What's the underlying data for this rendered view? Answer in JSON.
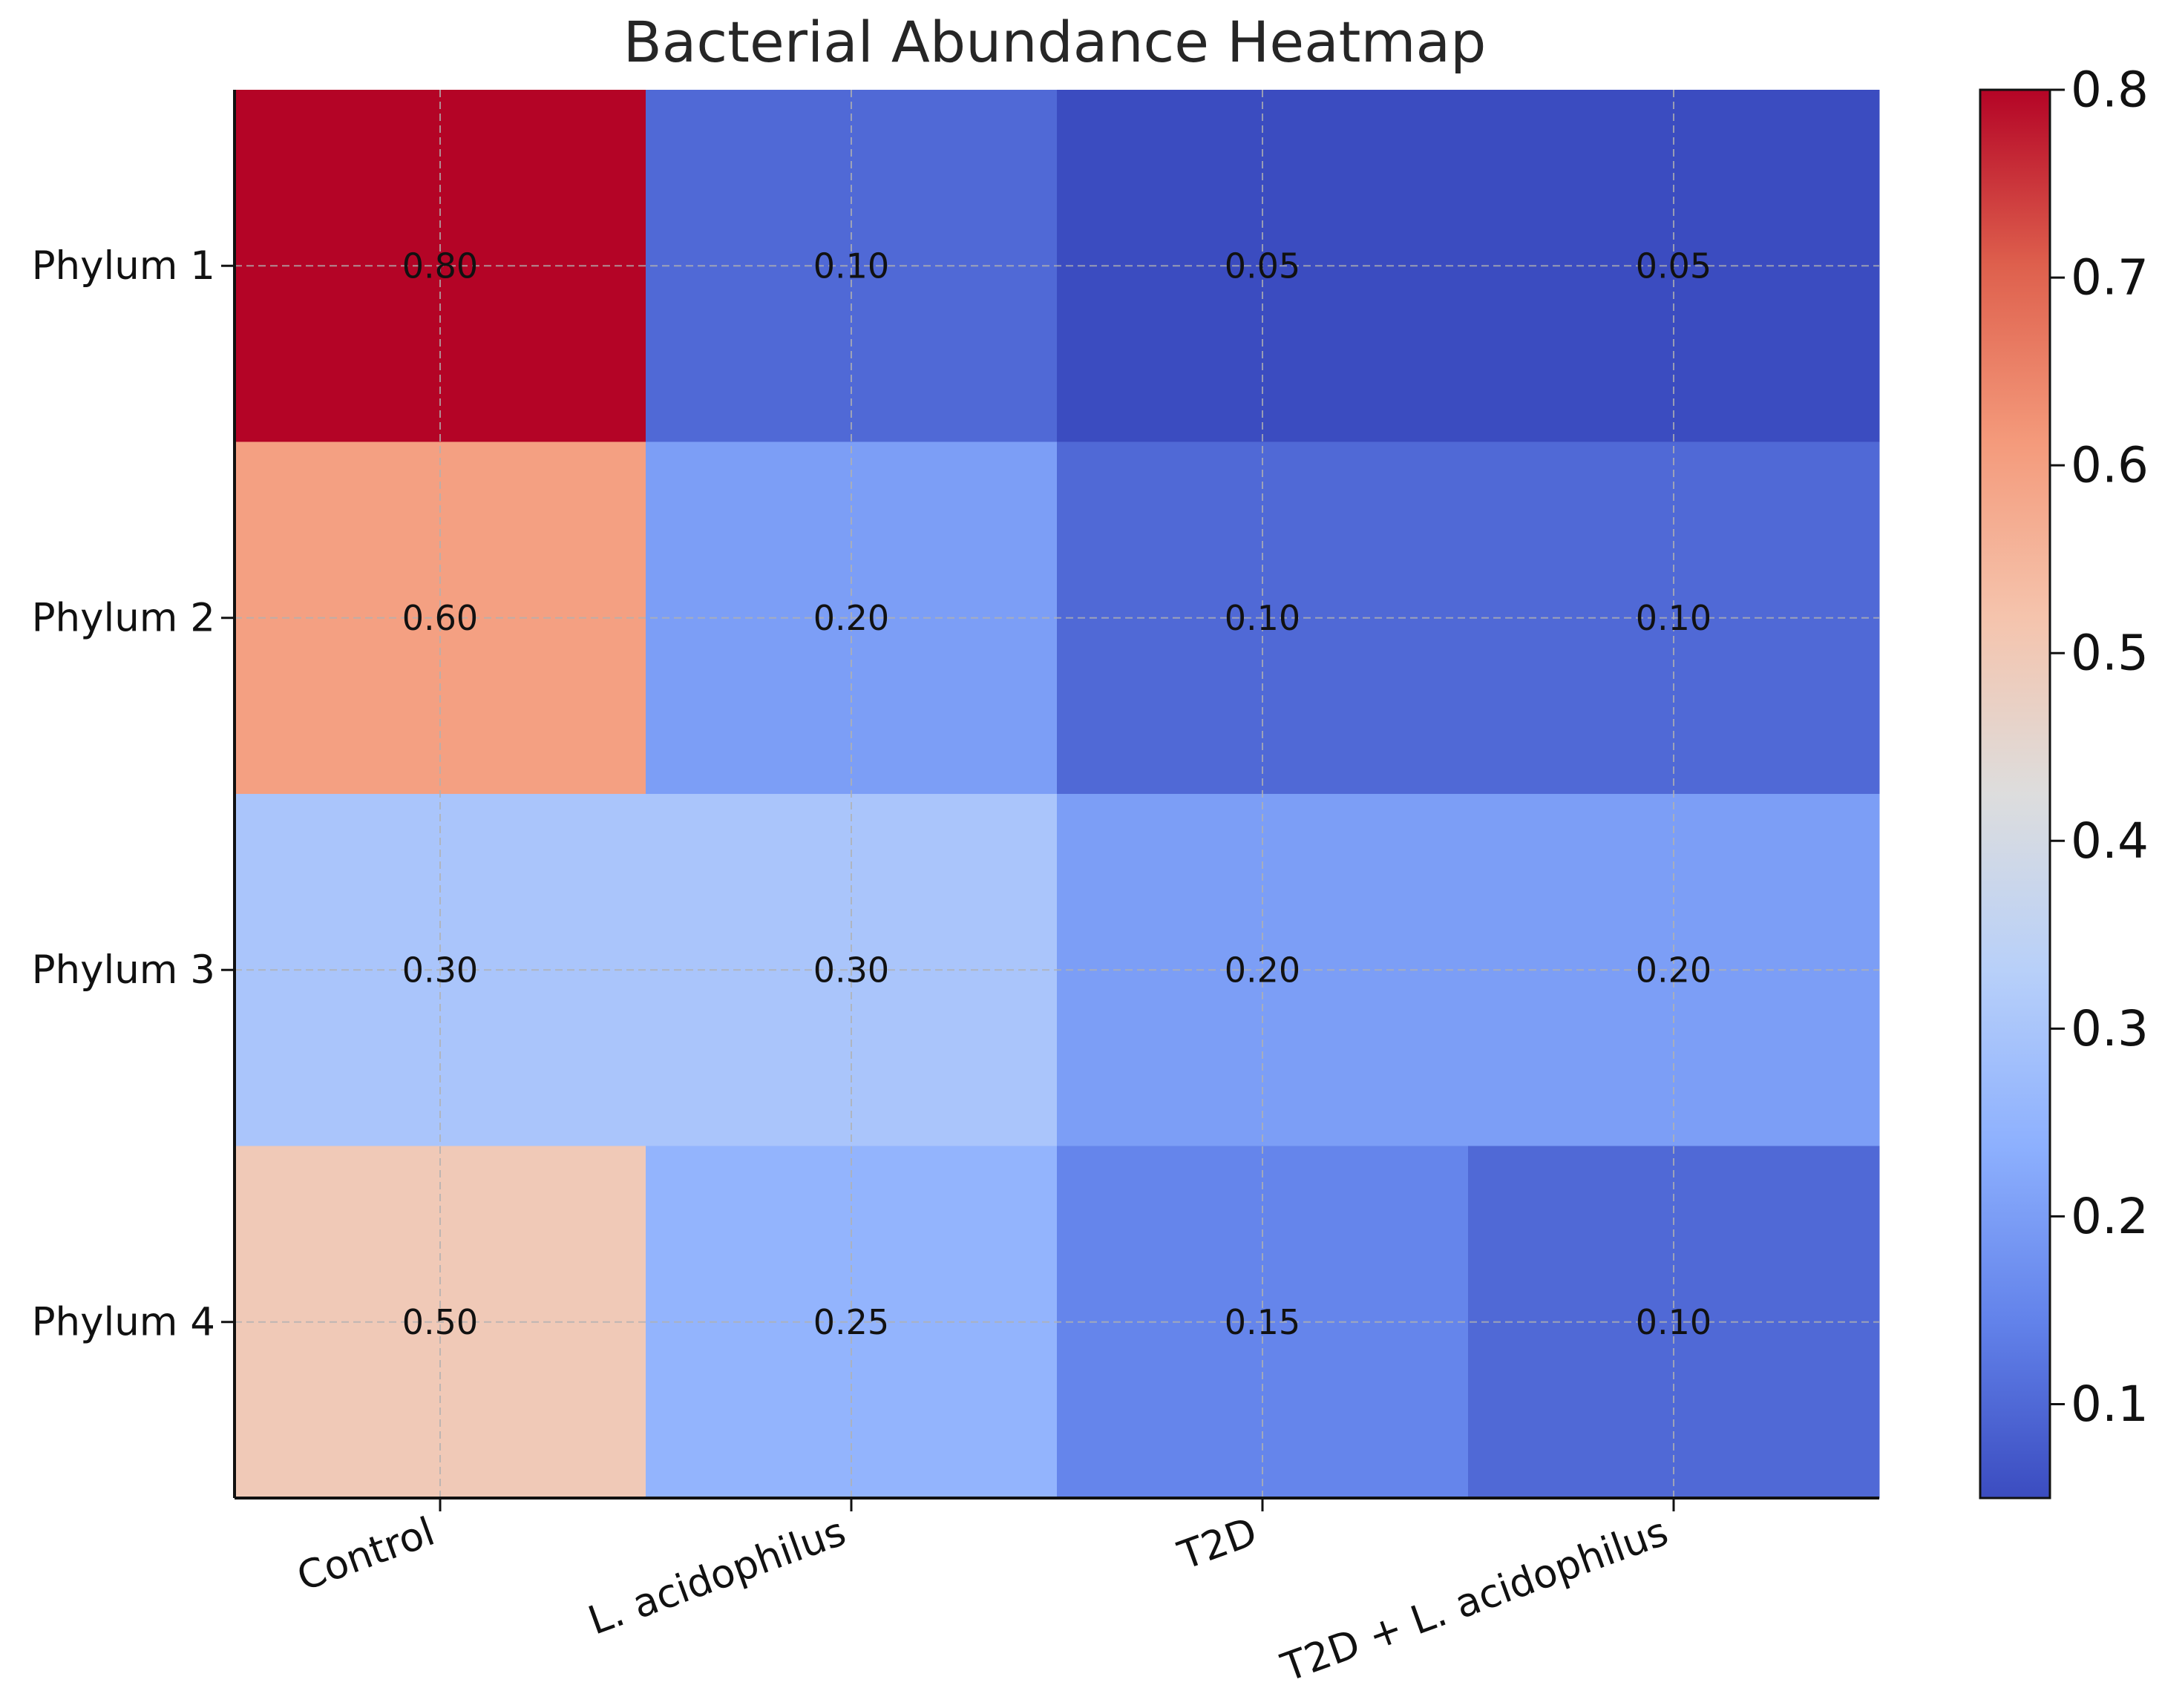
{
  "chart_data": {
    "type": "heatmap",
    "title": "Bacterial Abundance Heatmap",
    "xlabel": "",
    "ylabel": "",
    "x_categories": [
      "Control",
      "L. acidophilus",
      "T2D",
      "T2D + L. acidophilus"
    ],
    "y_categories": [
      "Phylum 1",
      "Phylum 2",
      "Phylum 3",
      "Phylum 4"
    ],
    "values": [
      [
        0.8,
        0.1,
        0.05,
        0.05
      ],
      [
        0.6,
        0.2,
        0.1,
        0.1
      ],
      [
        0.3,
        0.3,
        0.2,
        0.2
      ],
      [
        0.5,
        0.25,
        0.15,
        0.1
      ]
    ],
    "value_labels": [
      [
        "0.80",
        "0.10",
        "0.05",
        "0.05"
      ],
      [
        "0.60",
        "0.20",
        "0.10",
        "0.10"
      ],
      [
        "0.30",
        "0.30",
        "0.20",
        "0.20"
      ],
      [
        "0.50",
        "0.25",
        "0.15",
        "0.10"
      ]
    ],
    "colormap": "coolwarm",
    "colorbar": {
      "range": [
        0.05,
        0.8
      ],
      "ticks": [
        0.1,
        0.2,
        0.3,
        0.4,
        0.5,
        0.6,
        0.7,
        0.8
      ],
      "tick_labels": [
        "0.1",
        "0.2",
        "0.3",
        "0.4",
        "0.5",
        "0.6",
        "0.7",
        "0.8"
      ]
    },
    "grid": true,
    "annotated": true
  }
}
